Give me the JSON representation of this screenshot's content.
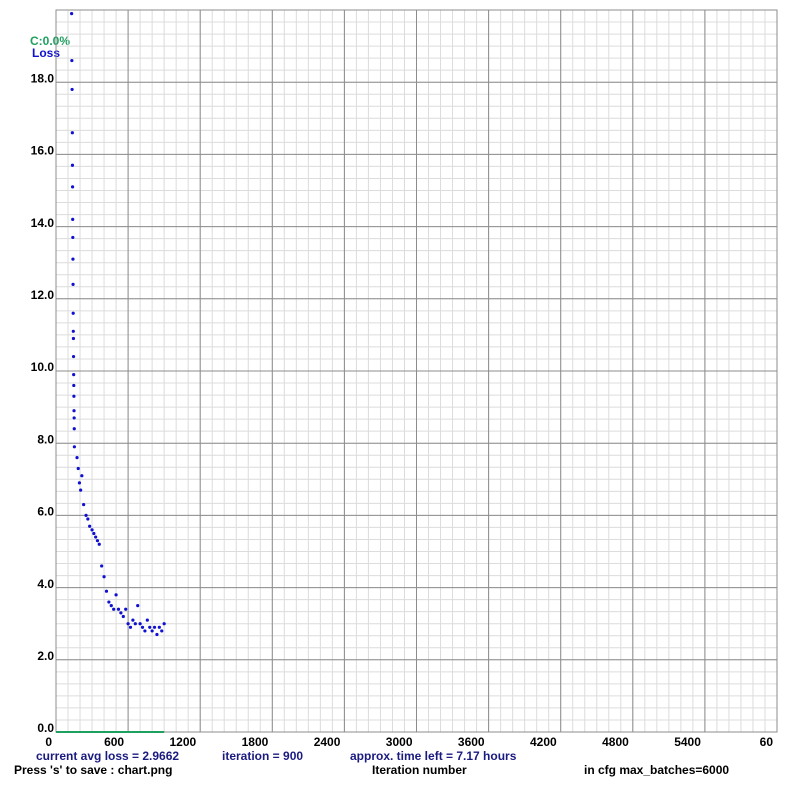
{
  "chart_data": {
    "type": "scatter",
    "series": [
      {
        "name": "Loss",
        "color": "#1010d0",
        "x": [
          130,
          132,
          134,
          136,
          137,
          138,
          139,
          140,
          141,
          142,
          143,
          144,
          145,
          146,
          147,
          148,
          149,
          150,
          151,
          152,
          153,
          175,
          185,
          195,
          205,
          215,
          230,
          250,
          265,
          280,
          300,
          315,
          330,
          345,
          360,
          380,
          400,
          420,
          440,
          460,
          480,
          500,
          520,
          540,
          560,
          580,
          600,
          620,
          640,
          660,
          680,
          700,
          720,
          740,
          760,
          780,
          800,
          820,
          840,
          860,
          880,
          900
        ],
        "values": [
          19.9,
          18.6,
          17.8,
          16.6,
          15.7,
          15.1,
          14.2,
          13.7,
          13.1,
          12.4,
          11.6,
          11.1,
          10.9,
          10.4,
          9.9,
          9.6,
          9.3,
          8.9,
          8.7,
          8.4,
          7.9,
          7.6,
          7.3,
          6.9,
          6.7,
          7.1,
          6.3,
          6.0,
          5.9,
          5.7,
          5.6,
          5.5,
          5.4,
          5.3,
          5.2,
          4.6,
          4.3,
          3.9,
          3.6,
          3.5,
          3.4,
          3.8,
          3.4,
          3.3,
          3.2,
          3.4,
          3.0,
          2.9,
          3.1,
          3.0,
          3.5,
          3.0,
          2.9,
          2.8,
          3.1,
          2.9,
          2.8,
          2.9,
          2.7,
          2.9,
          2.8,
          3.0
        ]
      },
      {
        "name": "C:0.0%",
        "color": "#20a060",
        "line": true,
        "x": [
          0,
          900
        ],
        "values": [
          0,
          0
        ]
      }
    ],
    "xlim": [
      0,
      6000
    ],
    "xticks": [
      0,
      600,
      1200,
      1800,
      2400,
      3000,
      3600,
      4200,
      4800,
      5400,
      {
        "value": 6000,
        "label": "60"
      }
    ],
    "ylim": [
      0,
      20
    ],
    "yticks": [
      {
        "value": 0,
        "label": "0.0"
      },
      {
        "value": 2,
        "label": "2.0"
      },
      {
        "value": 4,
        "label": "4.0"
      },
      {
        "value": 6,
        "label": "6.0"
      },
      {
        "value": 8,
        "label": "8.0"
      },
      {
        "value": 10,
        "label": "10.0"
      },
      {
        "value": 12,
        "label": "12.0"
      },
      {
        "value": 14,
        "label": "14.0"
      },
      {
        "value": 16,
        "label": "16.0"
      },
      {
        "value": 18,
        "label": "18.0"
      }
    ],
    "grid": true,
    "status": [
      "current avg loss = 2.9662",
      "iteration = 900",
      "approx. time left = 7.17 hours"
    ],
    "footer": [
      "Press 's' to save : chart.png",
      "Iteration number",
      "in cfg max_batches=6000"
    ]
  }
}
